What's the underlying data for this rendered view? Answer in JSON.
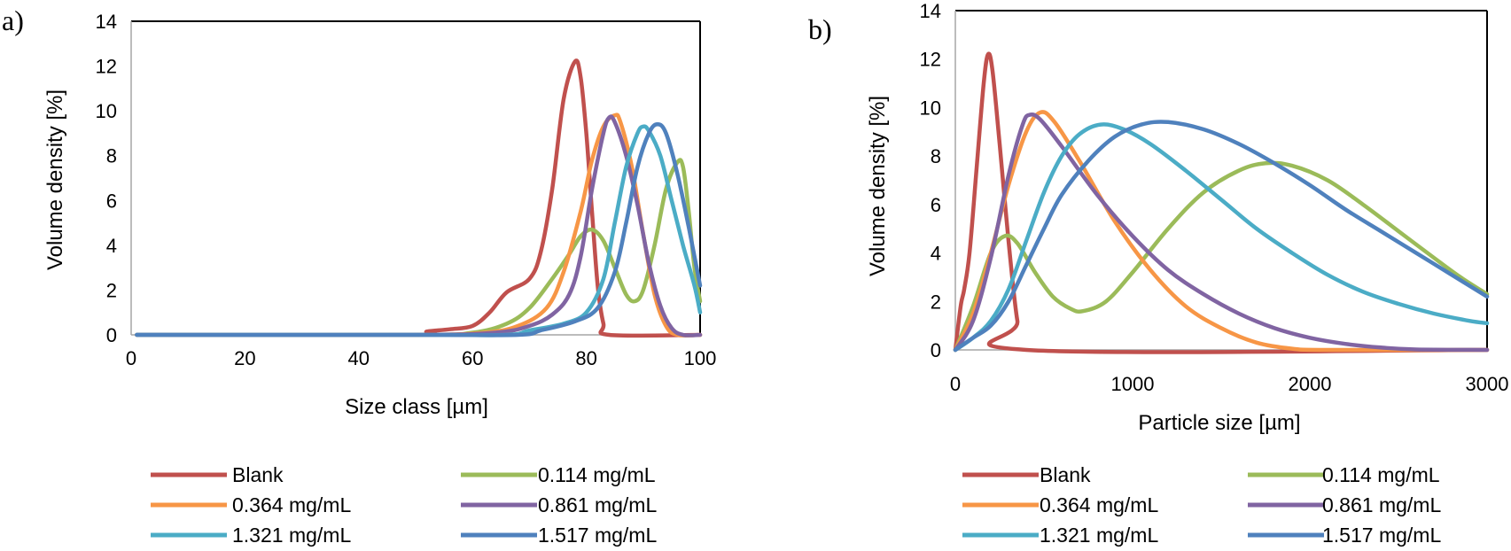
{
  "colors": {
    "Blank": "#c0504d",
    "0.114 mg/mL": "#9bbb59",
    "0.364 mg/mL": "#f79646",
    "0.861 mg/mL": "#8064a2",
    "1.321 mg/mL": "#4bacc6",
    "1.517 mg/mL": "#4f81bd"
  },
  "legend_order": [
    "Blank",
    "0.114 mg/mL",
    "0.364 mg/mL",
    "0.861 mg/mL",
    "1.321 mg/mL",
    "1.517 mg/mL"
  ],
  "chart_data": [
    {
      "panel_label": "a)",
      "type": "line",
      "xlabel": "Size class [µm]",
      "ylabel": "Volume density [%]",
      "xlim": [
        0,
        100
      ],
      "ylim": [
        0,
        14
      ],
      "xticks": [
        0,
        20,
        40,
        60,
        80,
        100
      ],
      "yticks": [
        0,
        2,
        4,
        6,
        8,
        10,
        12,
        14
      ],
      "grid": false,
      "legend_position": "bottom",
      "series": [
        {
          "name": "Blank",
          "points": [
            [
              1,
              0
            ],
            [
              49,
              0
            ],
            [
              52,
              0.15
            ],
            [
              56,
              0.25
            ],
            [
              60,
              0.4
            ],
            [
              63,
              1.0
            ],
            [
              66,
              1.9
            ],
            [
              70,
              2.5
            ],
            [
              72,
              3.7
            ],
            [
              74,
              6.5
            ],
            [
              76,
              10.5
            ],
            [
              78,
              12.2
            ],
            [
              79,
              11.5
            ],
            [
              80,
              9.0
            ],
            [
              81,
              5.5
            ],
            [
              82,
              2.2
            ],
            [
              83,
              0.5
            ],
            [
              84,
              0
            ],
            [
              100,
              0
            ]
          ]
        },
        {
          "name": "0.114 mg/mL",
          "points": [
            [
              1,
              0
            ],
            [
              50,
              0
            ],
            [
              60,
              0.1
            ],
            [
              66,
              0.5
            ],
            [
              70,
              1.2
            ],
            [
              74,
              2.5
            ],
            [
              77,
              3.6
            ],
            [
              79,
              4.4
            ],
            [
              81,
              4.7
            ],
            [
              83,
              4.2
            ],
            [
              85,
              3.0
            ],
            [
              87,
              1.8
            ],
            [
              88.5,
              1.5
            ],
            [
              90,
              2.0
            ],
            [
              92,
              4.0
            ],
            [
              94,
              6.5
            ],
            [
              96,
              7.7
            ],
            [
              97,
              7.5
            ],
            [
              98,
              5.5
            ],
            [
              99,
              3.0
            ],
            [
              100,
              1.5
            ]
          ]
        },
        {
          "name": "0.364 mg/mL",
          "points": [
            [
              1,
              0
            ],
            [
              50,
              0
            ],
            [
              62,
              0.1
            ],
            [
              68,
              0.4
            ],
            [
              73,
              1.2
            ],
            [
              76,
              2.8
            ],
            [
              79,
              5.5
            ],
            [
              81,
              7.8
            ],
            [
              83,
              9.3
            ],
            [
              85,
              9.8
            ],
            [
              86,
              9.5
            ],
            [
              88,
              7.5
            ],
            [
              90,
              4.5
            ],
            [
              92,
              1.8
            ],
            [
              94,
              0.4
            ],
            [
              96,
              0
            ],
            [
              100,
              0
            ]
          ]
        },
        {
          "name": "0.861 mg/mL",
          "points": [
            [
              1,
              0
            ],
            [
              50,
              0
            ],
            [
              64,
              0.1
            ],
            [
              70,
              0.4
            ],
            [
              74,
              0.9
            ],
            [
              77,
              1.8
            ],
            [
              79,
              3.5
            ],
            [
              81,
              6.5
            ],
            [
              83,
              9.0
            ],
            [
              84,
              9.7
            ],
            [
              85,
              9.5
            ],
            [
              87,
              8.0
            ],
            [
              89,
              5.8
            ],
            [
              91,
              3.2
            ],
            [
              93,
              1.3
            ],
            [
              95,
              0.3
            ],
            [
              97,
              0
            ],
            [
              100,
              0
            ]
          ]
        },
        {
          "name": "1.321 mg/mL",
          "points": [
            [
              1,
              0
            ],
            [
              50,
              0
            ],
            [
              66,
              0
            ],
            [
              70,
              0.2
            ],
            [
              76,
              0.5
            ],
            [
              80,
              1.0
            ],
            [
              83,
              2.5
            ],
            [
              85,
              5.0
            ],
            [
              87,
              7.5
            ],
            [
              89,
              9.0
            ],
            [
              90,
              9.3
            ],
            [
              91,
              9.1
            ],
            [
              93,
              8.0
            ],
            [
              95,
              6.0
            ],
            [
              97,
              4.0
            ],
            [
              99,
              2.2
            ],
            [
              100,
              1.0
            ]
          ]
        },
        {
          "name": "1.517 mg/mL",
          "points": [
            [
              1,
              0
            ],
            [
              50,
              0
            ],
            [
              68,
              0
            ],
            [
              72,
              0.2
            ],
            [
              78,
              0.6
            ],
            [
              82,
              1.2
            ],
            [
              85,
              2.8
            ],
            [
              87,
              5.0
            ],
            [
              89,
              7.5
            ],
            [
              91,
              9.0
            ],
            [
              92.5,
              9.4
            ],
            [
              94,
              9.0
            ],
            [
              96,
              7.2
            ],
            [
              98,
              4.8
            ],
            [
              100,
              2.2
            ]
          ]
        }
      ]
    },
    {
      "panel_label": "b)",
      "type": "line",
      "xlabel": "Particle size [µm]",
      "ylabel": "Volume density [%]",
      "xlim": [
        0,
        3000
      ],
      "ylim": [
        0,
        14
      ],
      "xticks": [
        0,
        1000,
        2000,
        3000
      ],
      "yticks": [
        0,
        2,
        4,
        6,
        8,
        10,
        12,
        14
      ],
      "grid": false,
      "legend_position": "bottom",
      "series": [
        {
          "name": "Blank",
          "points": [
            [
              0,
              0
            ],
            [
              30,
              1.8
            ],
            [
              50,
              2.5
            ],
            [
              80,
              4.0
            ],
            [
              120,
              7.5
            ],
            [
              160,
              11.0
            ],
            [
              185,
              12.2
            ],
            [
              210,
              11.5
            ],
            [
              250,
              8.5
            ],
            [
              300,
              4.5
            ],
            [
              350,
              1.2
            ],
            [
              400,
              0
            ],
            [
              3000,
              0
            ]
          ]
        },
        {
          "name": "0.114 mg/mL",
          "points": [
            [
              0,
              0
            ],
            [
              100,
              1.8
            ],
            [
              200,
              4.0
            ],
            [
              280,
              4.7
            ],
            [
              350,
              4.4
            ],
            [
              450,
              3.2
            ],
            [
              550,
              2.2
            ],
            [
              650,
              1.7
            ],
            [
              720,
              1.6
            ],
            [
              850,
              2.0
            ],
            [
              1000,
              3.2
            ],
            [
              1200,
              5.0
            ],
            [
              1400,
              6.5
            ],
            [
              1600,
              7.4
            ],
            [
              1750,
              7.7
            ],
            [
              1900,
              7.6
            ],
            [
              2100,
              7.0
            ],
            [
              2300,
              6.0
            ],
            [
              2500,
              4.9
            ],
            [
              2700,
              3.8
            ],
            [
              2850,
              3.0
            ],
            [
              3000,
              2.3
            ]
          ]
        },
        {
          "name": "0.364 mg/mL",
          "points": [
            [
              0,
              0
            ],
            [
              100,
              1.5
            ],
            [
              200,
              4.0
            ],
            [
              300,
              6.8
            ],
            [
              400,
              9.0
            ],
            [
              480,
              9.8
            ],
            [
              560,
              9.4
            ],
            [
              700,
              7.8
            ],
            [
              900,
              5.3
            ],
            [
              1100,
              3.3
            ],
            [
              1300,
              1.8
            ],
            [
              1500,
              0.9
            ],
            [
              1700,
              0.3
            ],
            [
              1900,
              0.05
            ],
            [
              2100,
              0
            ],
            [
              3000,
              0
            ]
          ]
        },
        {
          "name": "0.861 mg/mL",
          "points": [
            [
              0,
              0
            ],
            [
              100,
              1.2
            ],
            [
              200,
              3.8
            ],
            [
              300,
              7.2
            ],
            [
              380,
              9.3
            ],
            [
              420,
              9.7
            ],
            [
              480,
              9.5
            ],
            [
              600,
              8.4
            ],
            [
              800,
              6.4
            ],
            [
              1000,
              4.7
            ],
            [
              1200,
              3.3
            ],
            [
              1400,
              2.3
            ],
            [
              1600,
              1.5
            ],
            [
              1800,
              0.9
            ],
            [
              2000,
              0.5
            ],
            [
              2200,
              0.25
            ],
            [
              2400,
              0.1
            ],
            [
              2600,
              0.02
            ],
            [
              3000,
              0
            ]
          ]
        },
        {
          "name": "1.321 mg/mL",
          "points": [
            [
              0,
              0
            ],
            [
              100,
              0.5
            ],
            [
              200,
              1.2
            ],
            [
              300,
              2.5
            ],
            [
              400,
              4.5
            ],
            [
              500,
              6.5
            ],
            [
              600,
              8.0
            ],
            [
              700,
              8.9
            ],
            [
              820,
              9.3
            ],
            [
              950,
              9.1
            ],
            [
              1100,
              8.5
            ],
            [
              1300,
              7.4
            ],
            [
              1500,
              6.2
            ],
            [
              1700,
              5.0
            ],
            [
              1900,
              4.0
            ],
            [
              2100,
              3.1
            ],
            [
              2300,
              2.4
            ],
            [
              2500,
              1.9
            ],
            [
              2700,
              1.5
            ],
            [
              2900,
              1.2
            ],
            [
              3000,
              1.1
            ]
          ]
        },
        {
          "name": "1.517 mg/mL",
          "points": [
            [
              0,
              0
            ],
            [
              100,
              0.5
            ],
            [
              200,
              1.0
            ],
            [
              300,
              2.0
            ],
            [
              400,
              3.5
            ],
            [
              500,
              5.0
            ],
            [
              600,
              6.4
            ],
            [
              750,
              7.8
            ],
            [
              900,
              8.8
            ],
            [
              1050,
              9.3
            ],
            [
              1200,
              9.4
            ],
            [
              1400,
              9.1
            ],
            [
              1600,
              8.5
            ],
            [
              1800,
              7.7
            ],
            [
              2000,
              6.8
            ],
            [
              2200,
              5.8
            ],
            [
              2400,
              4.9
            ],
            [
              2600,
              4.0
            ],
            [
              2800,
              3.1
            ],
            [
              3000,
              2.2
            ]
          ]
        }
      ]
    }
  ]
}
